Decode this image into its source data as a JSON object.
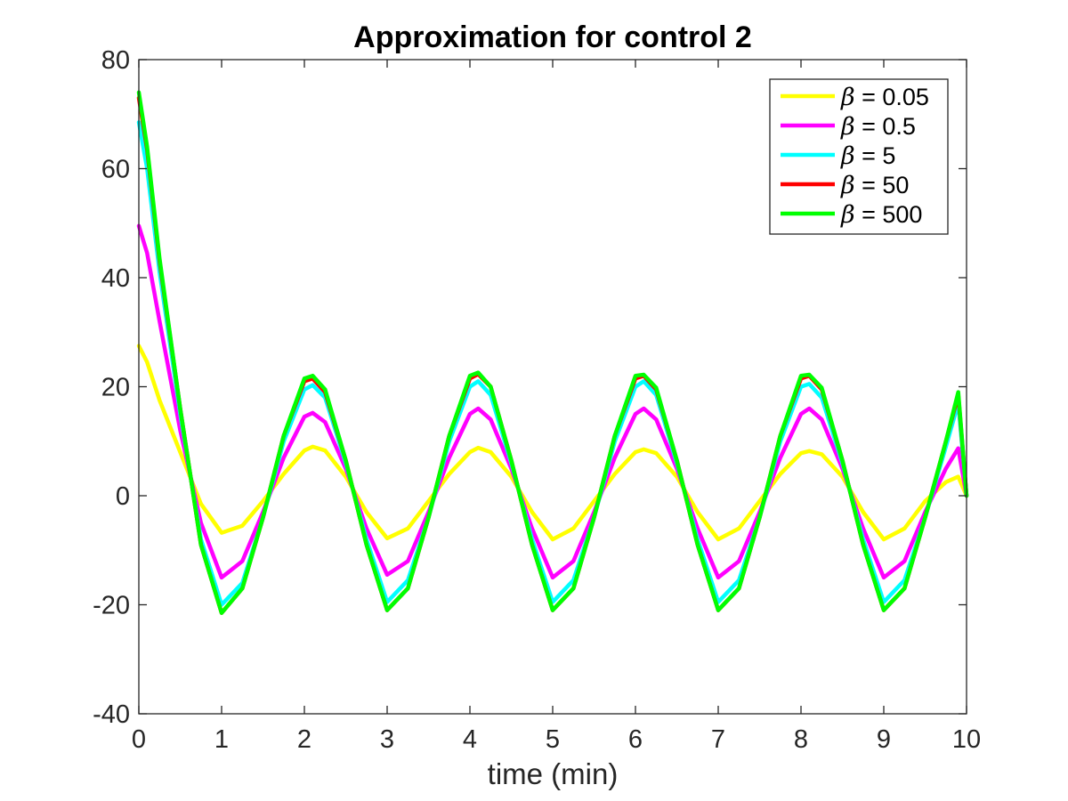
{
  "chart_data": {
    "type": "line",
    "title": "Approximation for control 2",
    "xlabel": "time (min)",
    "ylabel": "",
    "xlim": [
      0,
      10
    ],
    "ylim": [
      -40,
      80
    ],
    "xticks": [
      "0",
      "1",
      "2",
      "3",
      "4",
      "5",
      "6",
      "7",
      "8",
      "9",
      "10"
    ],
    "yticks": [
      "-40",
      "-20",
      "0",
      "20",
      "40",
      "60",
      "80"
    ],
    "grid": false,
    "legend_position": "top-right",
    "legend_symbol": "β",
    "series": [
      {
        "name": "= 0.05",
        "color": "#ffff00",
        "points": [
          [
            0,
            27.5
          ],
          [
            0.1,
            24.5
          ],
          [
            0.25,
            17.5
          ],
          [
            0.5,
            8
          ],
          [
            0.75,
            -1.5
          ],
          [
            1,
            -6.8
          ],
          [
            1.25,
            -5.5
          ],
          [
            1.5,
            -1
          ],
          [
            1.75,
            4
          ],
          [
            2,
            8.3
          ],
          [
            2.1,
            9
          ],
          [
            2.25,
            8.3
          ],
          [
            2.5,
            3.5
          ],
          [
            2.75,
            -3
          ],
          [
            3,
            -7.8
          ],
          [
            3.25,
            -6
          ],
          [
            3.5,
            -1
          ],
          [
            3.75,
            4
          ],
          [
            4,
            8
          ],
          [
            4.1,
            8.8
          ],
          [
            4.25,
            8
          ],
          [
            4.5,
            3.5
          ],
          [
            4.75,
            -3
          ],
          [
            5,
            -8
          ],
          [
            5.25,
            -6
          ],
          [
            5.5,
            -1
          ],
          [
            5.75,
            4
          ],
          [
            6,
            8
          ],
          [
            6.1,
            8.5
          ],
          [
            6.25,
            7.8
          ],
          [
            6.5,
            3.5
          ],
          [
            6.75,
            -3
          ],
          [
            7,
            -8
          ],
          [
            7.25,
            -6
          ],
          [
            7.5,
            -1
          ],
          [
            7.75,
            4
          ],
          [
            8,
            7.8
          ],
          [
            8.1,
            8.2
          ],
          [
            8.25,
            7.6
          ],
          [
            8.5,
            3.5
          ],
          [
            8.75,
            -3
          ],
          [
            9,
            -8
          ],
          [
            9.25,
            -6
          ],
          [
            9.5,
            -1
          ],
          [
            9.75,
            2.5
          ],
          [
            9.9,
            3.5
          ],
          [
            10,
            0
          ]
        ]
      },
      {
        "name": "= 0.5",
        "color": "#ff00ff",
        "points": [
          [
            0,
            49.5
          ],
          [
            0.1,
            44.5
          ],
          [
            0.25,
            32
          ],
          [
            0.5,
            12
          ],
          [
            0.75,
            -5
          ],
          [
            1,
            -15
          ],
          [
            1.25,
            -12
          ],
          [
            1.5,
            -3
          ],
          [
            1.75,
            7
          ],
          [
            2,
            14.5
          ],
          [
            2.1,
            15.2
          ],
          [
            2.25,
            13.5
          ],
          [
            2.5,
            5
          ],
          [
            2.75,
            -6
          ],
          [
            3,
            -14.5
          ],
          [
            3.25,
            -12
          ],
          [
            3.5,
            -3
          ],
          [
            3.75,
            7
          ],
          [
            4,
            15
          ],
          [
            4.1,
            16
          ],
          [
            4.25,
            14
          ],
          [
            4.5,
            5
          ],
          [
            4.75,
            -6
          ],
          [
            5,
            -15
          ],
          [
            5.25,
            -12
          ],
          [
            5.5,
            -3
          ],
          [
            5.75,
            7
          ],
          [
            6,
            15
          ],
          [
            6.1,
            16
          ],
          [
            6.25,
            14
          ],
          [
            6.5,
            5
          ],
          [
            6.75,
            -6
          ],
          [
            7,
            -15
          ],
          [
            7.25,
            -12
          ],
          [
            7.5,
            -3
          ],
          [
            7.75,
            7
          ],
          [
            8,
            15
          ],
          [
            8.1,
            16
          ],
          [
            8.25,
            14
          ],
          [
            8.5,
            5
          ],
          [
            8.75,
            -6
          ],
          [
            9,
            -15
          ],
          [
            9.25,
            -12
          ],
          [
            9.5,
            -3
          ],
          [
            9.75,
            5
          ],
          [
            9.9,
            8.7
          ],
          [
            10,
            0
          ]
        ]
      },
      {
        "name": "= 5",
        "color": "#00ffff",
        "points": [
          [
            0,
            68.5
          ],
          [
            0.1,
            60
          ],
          [
            0.25,
            41
          ],
          [
            0.5,
            15
          ],
          [
            0.75,
            -8
          ],
          [
            1,
            -20
          ],
          [
            1.25,
            -16
          ],
          [
            1.5,
            -4
          ],
          [
            1.75,
            10
          ],
          [
            2,
            19.5
          ],
          [
            2.1,
            20.3
          ],
          [
            2.25,
            18
          ],
          [
            2.5,
            6
          ],
          [
            2.75,
            -8
          ],
          [
            3,
            -19.5
          ],
          [
            3.25,
            -15.5
          ],
          [
            3.5,
            -4
          ],
          [
            3.75,
            10
          ],
          [
            4,
            20
          ],
          [
            4.1,
            21
          ],
          [
            4.25,
            18.5
          ],
          [
            4.5,
            6
          ],
          [
            4.75,
            -8
          ],
          [
            5,
            -19.5
          ],
          [
            5.25,
            -15.5
          ],
          [
            5.5,
            -4
          ],
          [
            5.75,
            10
          ],
          [
            6,
            20
          ],
          [
            6.1,
            21
          ],
          [
            6.25,
            18.5
          ],
          [
            6.5,
            6
          ],
          [
            6.75,
            -8
          ],
          [
            7,
            -19.5
          ],
          [
            7.25,
            -15.5
          ],
          [
            7.5,
            -4
          ],
          [
            7.75,
            10
          ],
          [
            8,
            20
          ],
          [
            8.1,
            20.5
          ],
          [
            8.25,
            18
          ],
          [
            8.5,
            6
          ],
          [
            8.75,
            -8
          ],
          [
            9,
            -19.5
          ],
          [
            9.25,
            -15.5
          ],
          [
            9.5,
            -4
          ],
          [
            9.75,
            9
          ],
          [
            9.9,
            17
          ],
          [
            10,
            0
          ]
        ]
      },
      {
        "name": "= 50",
        "color": "#ff0000",
        "points": [
          [
            0,
            73
          ],
          [
            0.1,
            63.5
          ],
          [
            0.25,
            43
          ],
          [
            0.5,
            16
          ],
          [
            0.75,
            -9
          ],
          [
            1,
            -21.5
          ],
          [
            1.25,
            -17
          ],
          [
            1.5,
            -4
          ],
          [
            1.75,
            11
          ],
          [
            2,
            21
          ],
          [
            2.1,
            21.5
          ],
          [
            2.25,
            19
          ],
          [
            2.5,
            6.5
          ],
          [
            2.75,
            -9
          ],
          [
            3,
            -21
          ],
          [
            3.25,
            -17
          ],
          [
            3.5,
            -4
          ],
          [
            3.75,
            11
          ],
          [
            4,
            21.5
          ],
          [
            4.1,
            22.3
          ],
          [
            4.25,
            20
          ],
          [
            4.5,
            6.5
          ],
          [
            4.75,
            -9
          ],
          [
            5,
            -21
          ],
          [
            5.25,
            -17
          ],
          [
            5.5,
            -4
          ],
          [
            5.75,
            11
          ],
          [
            6,
            21.5
          ],
          [
            6.1,
            22
          ],
          [
            6.25,
            19.5
          ],
          [
            6.5,
            6.5
          ],
          [
            6.75,
            -9
          ],
          [
            7,
            -21
          ],
          [
            7.25,
            -17
          ],
          [
            7.5,
            -4
          ],
          [
            7.75,
            11
          ],
          [
            8,
            21.5
          ],
          [
            8.1,
            22
          ],
          [
            8.25,
            19.5
          ],
          [
            8.5,
            6.5
          ],
          [
            8.75,
            -9
          ],
          [
            9,
            -21
          ],
          [
            9.25,
            -17
          ],
          [
            9.5,
            -4
          ],
          [
            9.75,
            10
          ],
          [
            9.9,
            18.5
          ],
          [
            10,
            0
          ]
        ]
      },
      {
        "name": "= 500",
        "color": "#00ff00",
        "points": [
          [
            0,
            74
          ],
          [
            0.1,
            64
          ],
          [
            0.25,
            43.5
          ],
          [
            0.5,
            16
          ],
          [
            0.75,
            -9
          ],
          [
            1,
            -21.5
          ],
          [
            1.25,
            -17
          ],
          [
            1.5,
            -4
          ],
          [
            1.75,
            11
          ],
          [
            2,
            21.5
          ],
          [
            2.1,
            22
          ],
          [
            2.25,
            19.5
          ],
          [
            2.5,
            6.5
          ],
          [
            2.75,
            -9
          ],
          [
            3,
            -21
          ],
          [
            3.25,
            -17
          ],
          [
            3.5,
            -4
          ],
          [
            3.75,
            11
          ],
          [
            4,
            22
          ],
          [
            4.1,
            22.6
          ],
          [
            4.25,
            20
          ],
          [
            4.5,
            6.5
          ],
          [
            4.75,
            -9
          ],
          [
            5,
            -21
          ],
          [
            5.25,
            -17
          ],
          [
            5.5,
            -4
          ],
          [
            5.75,
            11
          ],
          [
            6,
            22
          ],
          [
            6.1,
            22.2
          ],
          [
            6.25,
            19.8
          ],
          [
            6.5,
            6.5
          ],
          [
            6.75,
            -9
          ],
          [
            7,
            -21
          ],
          [
            7.25,
            -17
          ],
          [
            7.5,
            -4
          ],
          [
            7.75,
            11
          ],
          [
            8,
            22
          ],
          [
            8.1,
            22.2
          ],
          [
            8.25,
            19.8
          ],
          [
            8.5,
            6.5
          ],
          [
            8.75,
            -9
          ],
          [
            9,
            -21
          ],
          [
            9.25,
            -17
          ],
          [
            9.5,
            -4
          ],
          [
            9.75,
            10
          ],
          [
            9.9,
            19
          ],
          [
            10,
            0
          ]
        ]
      }
    ]
  }
}
